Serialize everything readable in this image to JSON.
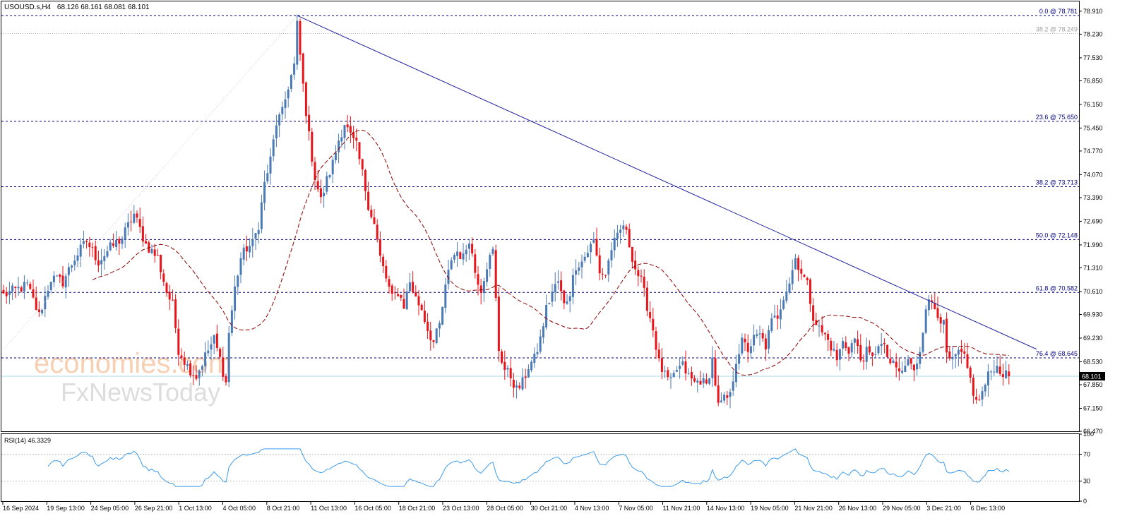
{
  "header": {
    "symbol": "USOUSD.s,H4",
    "ohlc": "68.126 68.161 68.081 68.101"
  },
  "chart_data": {
    "type": "candlestick",
    "price_axis": {
      "ylim": [
        66.47,
        79.2
      ],
      "ticks": [
        78.91,
        78.23,
        77.53,
        76.85,
        76.15,
        75.45,
        74.77,
        74.07,
        73.39,
        72.69,
        71.99,
        71.31,
        70.61,
        69.93,
        69.23,
        68.53,
        67.85,
        67.15,
        66.47
      ],
      "tick_labels": [
        "78.910",
        "78.230",
        "77.530",
        "76.850",
        "76.150",
        "75.450",
        "74.770",
        "74.070",
        "73.390",
        "72.690",
        "71.990",
        "71.310",
        "70.610",
        "69.930",
        "69.230",
        "68.530",
        "67.850",
        "67.150",
        "66.470"
      ],
      "current_price": 68.101,
      "current_price_label": "68.101"
    },
    "x_labels": [
      "16 Sep 2024",
      "19 Sep 13:00",
      "24 Sep 05:00",
      "26 Sep 21:00",
      "1 Oct 13:00",
      "4 Oct 05:00",
      "8 Oct 21:00",
      "11 Oct 13:00",
      "16 Oct 05:00",
      "18 Oct 21:00",
      "23 Oct 13:00",
      "28 Oct 05:00",
      "30 Oct 21:00",
      "4 Nov 13:00",
      "7 Nov 05:00",
      "11 Nov 21:00",
      "14 Nov 13:00",
      "19 Nov 05:00",
      "21 Nov 21:00",
      "26 Nov 13:00",
      "29 Nov 05:00",
      "3 Dec 21:00",
      "6 Dec 13:00"
    ],
    "fib_levels": [
      {
        "level": 78.781,
        "label": "0.0 @ 78.781",
        "color": "#000080",
        "style": "dashed"
      },
      {
        "level": 78.249,
        "label": "38.2 @ 78.249",
        "color": "#b0b0b0",
        "style": "dotted"
      },
      {
        "level": 75.65,
        "label": "23.6 @ 75.650",
        "color": "#000080",
        "style": "dashed"
      },
      {
        "level": 73.713,
        "label": "38.2 @ 73.713",
        "color": "#000080",
        "style": "dashed"
      },
      {
        "level": 72.148,
        "label": "50.0 @ 72.148",
        "color": "#000080",
        "style": "dashed"
      },
      {
        "level": 70.582,
        "label": "61.8 @ 70.582",
        "color": "#000080",
        "style": "dashed"
      },
      {
        "level": 68.645,
        "label": "76.4 @ 68.645",
        "color": "#000080",
        "style": "dashed"
      }
    ],
    "trendline": {
      "start_price": 78.78,
      "end_price": 68.9,
      "color": "#1f1fa0"
    },
    "close_path": [
      [
        0,
        70.5
      ],
      [
        8,
        70.8
      ],
      [
        12,
        69.9
      ],
      [
        16,
        71.0
      ],
      [
        20,
        70.9
      ],
      [
        24,
        71.6
      ],
      [
        28,
        72.1
      ],
      [
        32,
        71.5
      ],
      [
        36,
        71.9
      ],
      [
        40,
        72.2
      ],
      [
        44,
        72.9
      ],
      [
        48,
        72.0
      ],
      [
        52,
        71.6
      ],
      [
        55,
        70.6
      ],
      [
        57,
        70.2
      ],
      [
        59,
        68.9
      ],
      [
        62,
        68.4
      ],
      [
        65,
        68.1
      ],
      [
        68,
        68.7
      ],
      [
        71,
        69.2
      ],
      [
        73,
        68.6
      ],
      [
        75,
        67.9
      ],
      [
        76,
        69.4
      ],
      [
        78,
        70.7
      ],
      [
        80,
        71.6
      ],
      [
        82,
        71.9
      ],
      [
        84,
        72.0
      ],
      [
        86,
        72.6
      ],
      [
        88,
        73.8
      ],
      [
        90,
        74.5
      ],
      [
        92,
        75.6
      ],
      [
        94,
        75.9
      ],
      [
        96,
        76.7
      ],
      [
        98,
        77.3
      ],
      [
        99,
        78.5
      ],
      [
        101,
        76.7
      ],
      [
        103,
        75.2
      ],
      [
        105,
        74.0
      ],
      [
        107,
        73.3
      ],
      [
        109,
        73.9
      ],
      [
        111,
        74.4
      ],
      [
        113,
        75.1
      ],
      [
        115,
        75.6
      ],
      [
        117,
        75.2
      ],
      [
        119,
        74.9
      ],
      [
        121,
        74.1
      ],
      [
        123,
        73.2
      ],
      [
        125,
        72.6
      ],
      [
        127,
        71.6
      ],
      [
        129,
        71.0
      ],
      [
        131,
        70.4
      ],
      [
        133,
        70.6
      ],
      [
        135,
        70.2
      ],
      [
        137,
        70.9
      ],
      [
        139,
        70.4
      ],
      [
        141,
        70.1
      ],
      [
        143,
        69.5
      ],
      [
        145,
        69.1
      ],
      [
        147,
        69.6
      ],
      [
        149,
        70.7
      ],
      [
        151,
        71.6
      ],
      [
        153,
        71.8
      ],
      [
        155,
        71.6
      ],
      [
        157,
        72.2
      ],
      [
        159,
        71.2
      ],
      [
        161,
        70.7
      ],
      [
        163,
        71.4
      ],
      [
        165,
        71.8
      ],
      [
        167,
        68.9
      ],
      [
        169,
        68.3
      ],
      [
        171,
        68.1
      ],
      [
        173,
        67.7
      ],
      [
        175,
        67.9
      ],
      [
        177,
        68.4
      ],
      [
        179,
        68.6
      ],
      [
        181,
        69.2
      ],
      [
        183,
        70.1
      ],
      [
        185,
        70.6
      ],
      [
        187,
        70.9
      ],
      [
        189,
        70.2
      ],
      [
        191,
        70.6
      ],
      [
        193,
        71.4
      ],
      [
        195,
        71.5
      ],
      [
        197,
        71.8
      ],
      [
        199,
        72.1
      ],
      [
        201,
        71.2
      ],
      [
        203,
        71.1
      ],
      [
        205,
        71.9
      ],
      [
        207,
        72.2
      ],
      [
        209,
        72.6
      ],
      [
        211,
        72.0
      ],
      [
        213,
        71.3
      ],
      [
        215,
        70.9
      ],
      [
        217,
        70.2
      ],
      [
        219,
        69.5
      ],
      [
        221,
        68.5
      ],
      [
        223,
        68.1
      ],
      [
        225,
        67.9
      ],
      [
        227,
        68.3
      ],
      [
        229,
        68.4
      ],
      [
        231,
        68.1
      ],
      [
        233,
        67.9
      ],
      [
        235,
        68.0
      ],
      [
        237,
        67.8
      ],
      [
        239,
        68.6
      ],
      [
        241,
        67.2
      ],
      [
        243,
        67.4
      ],
      [
        245,
        67.5
      ],
      [
        247,
        68.6
      ],
      [
        249,
        69.1
      ],
      [
        251,
        68.9
      ],
      [
        253,
        69.2
      ],
      [
        255,
        69.3
      ],
      [
        257,
        69.0
      ],
      [
        259,
        69.7
      ],
      [
        261,
        69.9
      ],
      [
        263,
        70.5
      ],
      [
        265,
        70.9
      ],
      [
        267,
        71.6
      ],
      [
        269,
        71.2
      ],
      [
        271,
        70.8
      ],
      [
        273,
        69.9
      ],
      [
        275,
        69.5
      ],
      [
        277,
        69.3
      ],
      [
        279,
        69.0
      ],
      [
        281,
        68.6
      ],
      [
        283,
        69.1
      ],
      [
        285,
        68.9
      ],
      [
        287,
        69.2
      ],
      [
        289,
        68.6
      ],
      [
        291,
        68.8
      ],
      [
        293,
        68.6
      ],
      [
        295,
        69.1
      ],
      [
        297,
        68.9
      ],
      [
        299,
        68.5
      ],
      [
        301,
        68.3
      ],
      [
        303,
        68.2
      ],
      [
        305,
        68.6
      ],
      [
        307,
        68.2
      ],
      [
        309,
        68.9
      ],
      [
        311,
        70.2
      ],
      [
        313,
        70.3
      ],
      [
        315,
        70.0
      ],
      [
        317,
        69.6
      ],
      [
        318,
        68.7
      ],
      [
        320,
        68.5
      ],
      [
        322,
        68.8
      ],
      [
        324,
        68.6
      ],
      [
        326,
        68.0
      ],
      [
        328,
        67.3
      ],
      [
        330,
        67.6
      ],
      [
        332,
        68.1
      ],
      [
        334,
        68.4
      ],
      [
        336,
        68.3
      ],
      [
        338,
        68.101
      ]
    ],
    "ma": {
      "period": 30,
      "color": "#8b0000",
      "style": "dashed"
    },
    "colors": {
      "bull": "#4a7ab5",
      "bear": "#e8141a",
      "trend": "#1f1fa0",
      "fib": "#000080",
      "ma": "#8b0000",
      "rsi": "#3d9be9",
      "current_price_line": "#a8d8e8"
    },
    "rsi": {
      "label": "RSI(14) 46.3329",
      "period": 14,
      "ylim": [
        0,
        100
      ],
      "ticks": [
        100,
        70,
        30,
        0
      ],
      "tick_labels": [
        "100",
        "70",
        "30",
        "0"
      ],
      "levels": [
        70,
        30
      ]
    }
  },
  "watermark": {
    "line1": "economies.com",
    "line2": "FxNewsToday"
  }
}
